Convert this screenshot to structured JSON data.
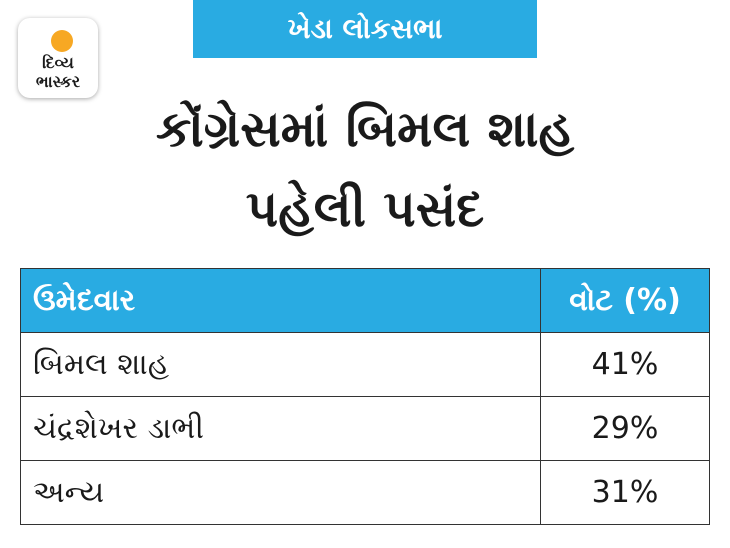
{
  "logo": {
    "line1": "દિવ્ય",
    "line2": "ભાસ્કર"
  },
  "header": {
    "tag": "ખેડા લોકસભા",
    "title_line1": "કોંગ્રેસમાં બિમલ શાહ",
    "title_line2": "પહેલી પસંદ"
  },
  "table": {
    "columns": [
      "ઉમેદવાર",
      "વોટ (%)"
    ],
    "rows": [
      [
        "બિમલ શાહ",
        "41%"
      ],
      [
        "ચંદ્રશેખર ડાભી",
        "29%"
      ],
      [
        "અન્ય",
        "31%"
      ]
    ]
  }
}
